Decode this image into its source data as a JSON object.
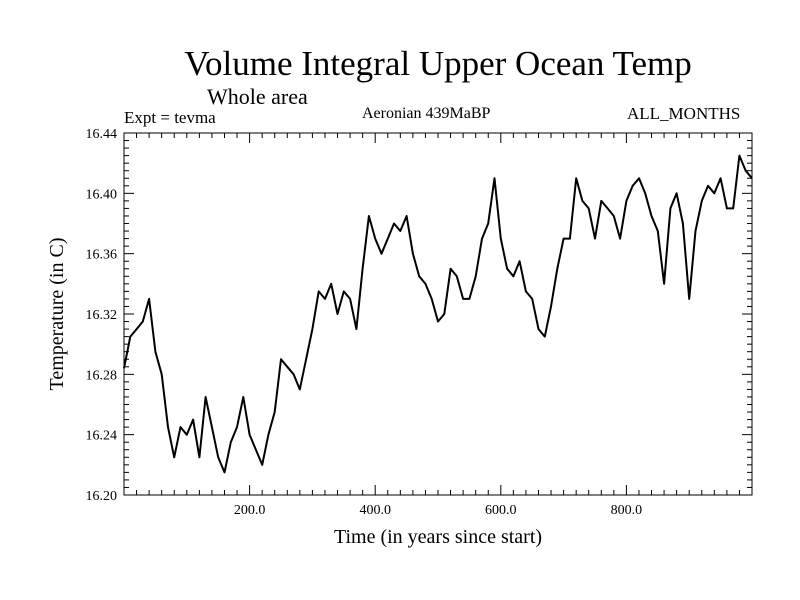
{
  "chart_data": {
    "type": "line",
    "title": "Volume Integral Upper Ocean Temp",
    "subtitle": "Whole area",
    "experiment": "Expt = tevma",
    "period": "Aeronian 439MaBP",
    "months": "ALL_MONTHS",
    "xlabel": "Time (in years since start)",
    "ylabel": "Temperature (in C)",
    "xlim": [
      0,
      1000
    ],
    "ylim": [
      16.2,
      16.44
    ],
    "x_ticks": [
      200,
      400,
      600,
      800
    ],
    "x_tick_labels": [
      "200.0",
      "400.0",
      "600.0",
      "800.0"
    ],
    "y_ticks": [
      16.2,
      16.24,
      16.28,
      16.32,
      16.36,
      16.4,
      16.44
    ],
    "y_tick_labels": [
      "16.20",
      "16.24",
      "16.28",
      "16.32",
      "16.36",
      "16.40",
      "16.44"
    ],
    "series": [
      {
        "name": "Volume Integral Upper Ocean Temp",
        "color": "#000000",
        "x": [
          0,
          10,
          20,
          30,
          40,
          50,
          60,
          70,
          80,
          90,
          100,
          110,
          120,
          130,
          140,
          150,
          160,
          170,
          180,
          190,
          200,
          210,
          220,
          230,
          240,
          250,
          260,
          270,
          280,
          290,
          300,
          310,
          320,
          330,
          340,
          350,
          360,
          370,
          380,
          390,
          400,
          410,
          420,
          430,
          440,
          450,
          460,
          470,
          480,
          490,
          500,
          510,
          520,
          530,
          540,
          550,
          560,
          570,
          580,
          590,
          600,
          610,
          620,
          630,
          640,
          650,
          660,
          670,
          680,
          690,
          700,
          710,
          720,
          730,
          740,
          750,
          760,
          770,
          780,
          790,
          800,
          810,
          820,
          830,
          840,
          850,
          860,
          870,
          880,
          890,
          900,
          910,
          920,
          930,
          940,
          950,
          960,
          970,
          980,
          990,
          1000
        ],
        "values": [
          16.284,
          16.305,
          16.31,
          16.315,
          16.33,
          16.295,
          16.28,
          16.245,
          16.225,
          16.245,
          16.24,
          16.25,
          16.225,
          16.265,
          16.245,
          16.225,
          16.215,
          16.235,
          16.245,
          16.265,
          16.24,
          16.23,
          16.22,
          16.24,
          16.255,
          16.29,
          16.285,
          16.28,
          16.27,
          16.29,
          16.31,
          16.335,
          16.33,
          16.34,
          16.32,
          16.335,
          16.33,
          16.31,
          16.35,
          16.385,
          16.37,
          16.36,
          16.37,
          16.38,
          16.375,
          16.385,
          16.36,
          16.345,
          16.34,
          16.33,
          16.315,
          16.32,
          16.35,
          16.345,
          16.33,
          16.33,
          16.345,
          16.37,
          16.38,
          16.41,
          16.37,
          16.35,
          16.345,
          16.355,
          16.335,
          16.33,
          16.31,
          16.305,
          16.325,
          16.35,
          16.37,
          16.37,
          16.41,
          16.395,
          16.39,
          16.37,
          16.395,
          16.39,
          16.385,
          16.37,
          16.395,
          16.405,
          16.41,
          16.4,
          16.385,
          16.375,
          16.34,
          16.39,
          16.4,
          16.38,
          16.33,
          16.375,
          16.395,
          16.405,
          16.4,
          16.41,
          16.39,
          16.39,
          16.425,
          16.415,
          16.41
        ]
      }
    ]
  }
}
